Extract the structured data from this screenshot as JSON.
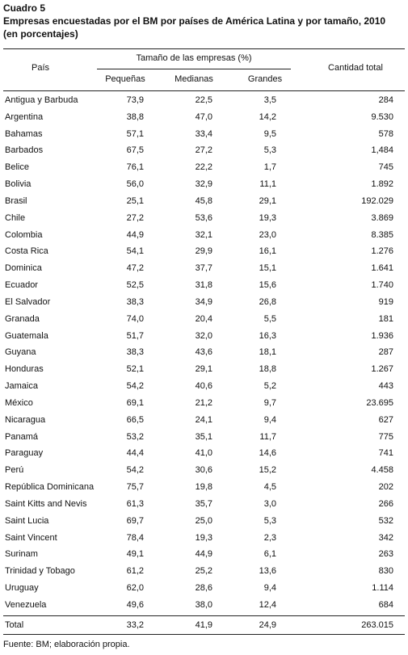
{
  "header": {
    "label": "Cuadro 5",
    "title": "Empresas encuestadas por el BM por países de América Latina y por tamaño, 2010",
    "subtitle": "(en porcentajes)"
  },
  "table": {
    "columns": {
      "country": "País",
      "group": "Tamaño de las empresas (%)",
      "sub": [
        "Pequeñas",
        "Medianas",
        "Grandes"
      ],
      "total": "Cantidad total"
    },
    "rows": [
      [
        "Antigua y Barbuda",
        "73,9",
        "22,5",
        "3,5",
        "284"
      ],
      [
        "Argentina",
        "38,8",
        "47,0",
        "14,2",
        "9.530"
      ],
      [
        "Bahamas",
        "57,1",
        "33,4",
        "9,5",
        "578"
      ],
      [
        "Barbados",
        "67,5",
        "27,2",
        "5,3",
        "1,484"
      ],
      [
        "Belice",
        "76,1",
        "22,2",
        "1,7",
        "745"
      ],
      [
        "Bolivia",
        "56,0",
        "32,9",
        "11,1",
        "1.892"
      ],
      [
        "Brasil",
        "25,1",
        "45,8",
        "29,1",
        "192.029"
      ],
      [
        "Chile",
        "27,2",
        "53,6",
        "19,3",
        "3.869"
      ],
      [
        "Colombia",
        "44,9",
        "32,1",
        "23,0",
        "8.385"
      ],
      [
        "Costa Rica",
        "54,1",
        "29,9",
        "16,1",
        "1.276"
      ],
      [
        "Dominica",
        "47,2",
        "37,7",
        "15,1",
        "1.641"
      ],
      [
        "Ecuador",
        "52,5",
        "31,8",
        "15,6",
        "1.740"
      ],
      [
        "El Salvador",
        "38,3",
        "34,9",
        "26,8",
        "919"
      ],
      [
        "Granada",
        "74,0",
        "20,4",
        "5,5",
        "181"
      ],
      [
        "Guatemala",
        "51,7",
        "32,0",
        "16,3",
        "1.936"
      ],
      [
        "Guyana",
        "38,3",
        "43,6",
        "18,1",
        "287"
      ],
      [
        "Honduras",
        "52,1",
        "29,1",
        "18,8",
        "1.267"
      ],
      [
        "Jamaica",
        "54,2",
        "40,6",
        "5,2",
        "443"
      ],
      [
        "México",
        "69,1",
        "21,2",
        "9,7",
        "23.695"
      ],
      [
        "Nicaragua",
        "66,5",
        "24,1",
        "9,4",
        "627"
      ],
      [
        "Panamá",
        "53,2",
        "35,1",
        "11,7",
        "775"
      ],
      [
        "Paraguay",
        "44,4",
        "41,0",
        "14,6",
        "741"
      ],
      [
        "Perú",
        "54,2",
        "30,6",
        "15,2",
        "4.458"
      ],
      [
        "República Dominicana",
        "75,7",
        "19,8",
        "4,5",
        "202"
      ],
      [
        "Saint Kitts and Nevis",
        "61,3",
        "35,7",
        "3,0",
        "266"
      ],
      [
        "Saint Lucia",
        "69,7",
        "25,0",
        "5,3",
        "532"
      ],
      [
        "Saint Vincent",
        "78,4",
        "19,3",
        "2,3",
        "342"
      ],
      [
        "Surinam",
        "49,1",
        "44,9",
        "6,1",
        "263"
      ],
      [
        "Trinidad y Tobago",
        "61,2",
        "25,2",
        "13,6",
        "830"
      ],
      [
        "Uruguay",
        "62,0",
        "28,6",
        "9,4",
        "1.114"
      ],
      [
        "Venezuela",
        "49,6",
        "38,0",
        "12,4",
        "684"
      ]
    ],
    "total": [
      "Total",
      "33,2",
      "41,9",
      "24,9",
      "263.015"
    ]
  },
  "footer": {
    "source": "Fuente: BM; elaboración propia."
  }
}
